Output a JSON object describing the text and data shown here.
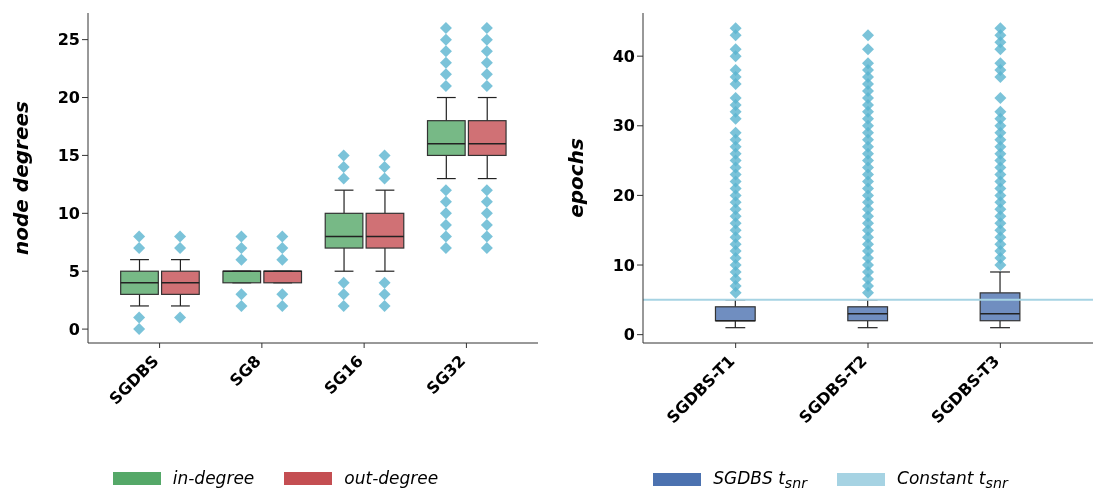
{
  "chart_data": [
    {
      "type": "box",
      "ylabel": "node degrees",
      "categories": [
        "SGDBS",
        "SG8",
        "SG16",
        "SG32"
      ],
      "ylim": [
        -1.2,
        27.3
      ],
      "yticks": [
        0,
        5,
        10,
        15,
        20,
        25
      ],
      "legend": "bottom",
      "grid": false,
      "series": [
        {
          "name": "in-degree",
          "color": "#55a868",
          "boxes": [
            {
              "low": 2,
              "q1": 3,
              "median": 4,
              "q3": 5,
              "high": 6,
              "outliers": [
                0,
                1,
                7,
                8
              ]
            },
            {
              "low": 4,
              "q1": 4,
              "median": 5,
              "q3": 5,
              "high": 5,
              "outliers": [
                2,
                3,
                6,
                7,
                8
              ]
            },
            {
              "low": 5,
              "q1": 7,
              "median": 8,
              "q3": 10,
              "high": 12,
              "outliers": [
                2,
                3,
                4,
                13,
                14,
                15
              ]
            },
            {
              "low": 13,
              "q1": 15,
              "median": 16,
              "q3": 18,
              "high": 20,
              "outliers": [
                7,
                8,
                9,
                10,
                11,
                12,
                21,
                22,
                23,
                24,
                25,
                26
              ]
            }
          ]
        },
        {
          "name": "out-degree",
          "color": "#c44e52",
          "boxes": [
            {
              "low": 2,
              "q1": 3,
              "median": 4,
              "q3": 5,
              "high": 6,
              "outliers": [
                1,
                7,
                8
              ]
            },
            {
              "low": 4,
              "q1": 4,
              "median": 5,
              "q3": 5,
              "high": 5,
              "outliers": [
                2,
                3,
                6,
                7,
                8
              ]
            },
            {
              "low": 5,
              "q1": 7,
              "median": 8,
              "q3": 10,
              "high": 12,
              "outliers": [
                2,
                3,
                4,
                13,
                14,
                15
              ]
            },
            {
              "low": 13,
              "q1": 15,
              "median": 16,
              "q3": 18,
              "high": 20,
              "outliers": [
                7,
                8,
                9,
                10,
                11,
                12,
                21,
                22,
                23,
                24,
                25,
                26
              ]
            }
          ]
        }
      ]
    },
    {
      "type": "box",
      "ylabel": "epochs",
      "categories": [
        "SGDBS-T1",
        "SGDBS-T2",
        "SGDBS-T3"
      ],
      "ylim": [
        -1.2,
        46.2
      ],
      "yticks": [
        0,
        10,
        20,
        30,
        40
      ],
      "legend": "bottom",
      "grid": false,
      "ref_lines": [
        {
          "axis": "y",
          "value": 5,
          "label": "Constant t$_{snr}$",
          "color": "#a6d3e3"
        }
      ],
      "series": [
        {
          "name": "SGDBS t$_{snr}$",
          "color": "#4c72b0",
          "boxes": [
            {
              "low": 1,
              "q1": 2,
              "median": 2,
              "q3": 4,
              "high": 5,
              "outliers": [
                6,
                7,
                8,
                9,
                10,
                11,
                12,
                13,
                14,
                15,
                16,
                17,
                18,
                19,
                20,
                21,
                22,
                23,
                24,
                25,
                26,
                27,
                28,
                29,
                31,
                32,
                33,
                34,
                36,
                37,
                38,
                40,
                41,
                43,
                44
              ]
            },
            {
              "low": 1,
              "q1": 2,
              "median": 3,
              "q3": 4,
              "high": 5,
              "outliers": [
                6,
                7,
                8,
                9,
                10,
                11,
                12,
                13,
                14,
                15,
                16,
                17,
                18,
                19,
                20,
                21,
                22,
                23,
                24,
                25,
                26,
                27,
                28,
                29,
                30,
                31,
                32,
                33,
                34,
                35,
                36,
                37,
                38,
                39,
                41,
                43
              ]
            },
            {
              "low": 1,
              "q1": 2,
              "median": 3,
              "q3": 6,
              "high": 9,
              "outliers": [
                10,
                11,
                12,
                13,
                14,
                15,
                16,
                17,
                18,
                19,
                20,
                21,
                22,
                23,
                24,
                25,
                26,
                27,
                28,
                29,
                30,
                31,
                32,
                34,
                37,
                38,
                39,
                41,
                42,
                43,
                44
              ]
            }
          ]
        }
      ]
    }
  ]
}
